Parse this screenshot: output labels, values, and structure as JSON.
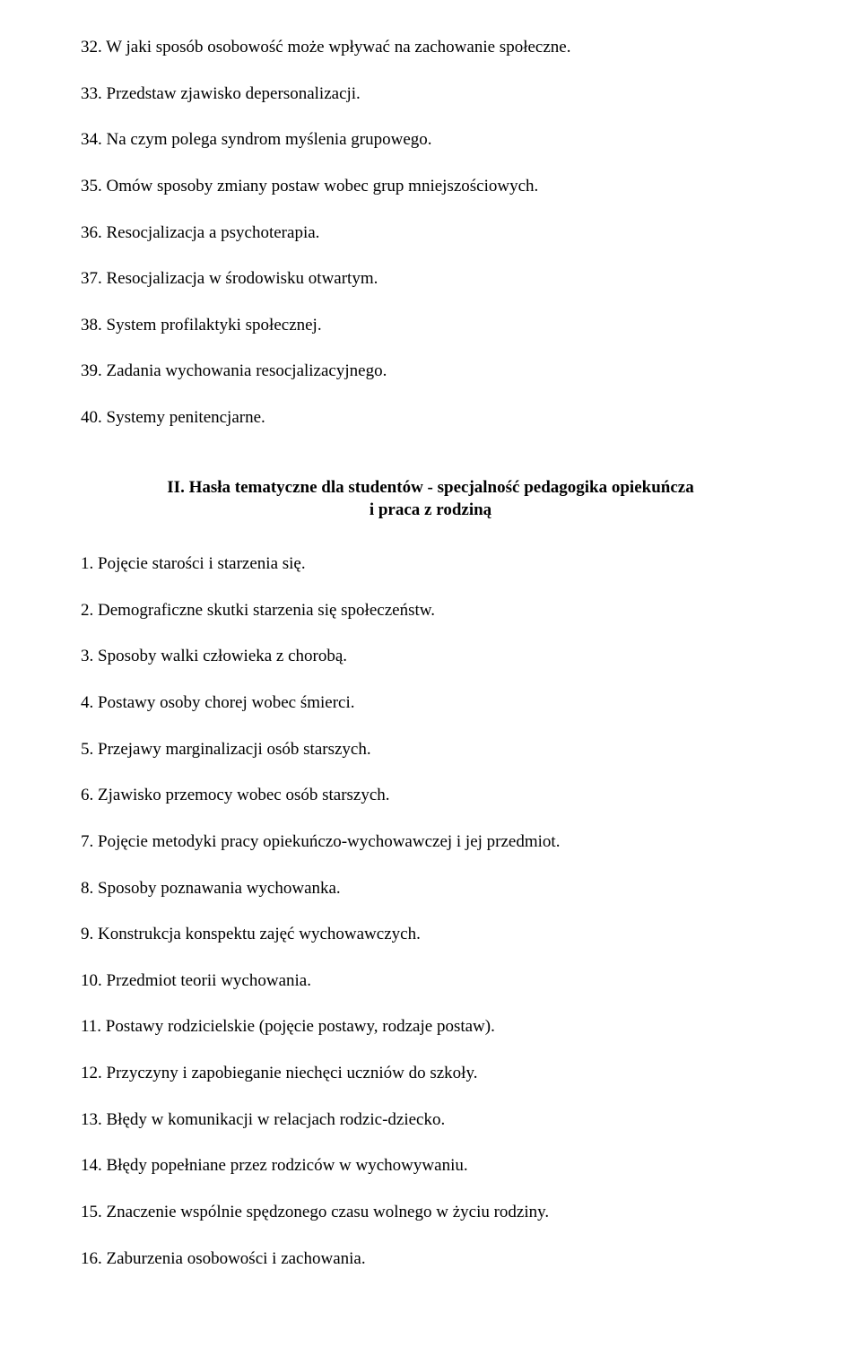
{
  "section1": {
    "items": [
      "32. W jaki sposób osobowość może wpływać na zachowanie społeczne.",
      "33. Przedstaw zjawisko depersonalizacji.",
      "34. Na czym polega syndrom myślenia grupowego.",
      "35. Omów sposoby zmiany postaw wobec grup mniejszościowych.",
      "36. Resocjalizacja a psychoterapia.",
      "37. Resocjalizacja w środowisku otwartym.",
      "38. System profilaktyki społecznej.",
      "39. Zadania wychowania resocjalizacyjnego.",
      "40. Systemy penitencjarne."
    ]
  },
  "section2": {
    "heading_line1": "II. Hasła tematyczne dla studentów - specjalność pedagogika opiekuńcza",
    "heading_line2": "i praca z rodziną",
    "items": [
      "1. Pojęcie starości i starzenia się.",
      "2. Demograficzne skutki starzenia się społeczeństw.",
      "3. Sposoby walki człowieka z chorobą.",
      "4. Postawy osoby chorej wobec śmierci.",
      "5. Przejawy marginalizacji osób starszych.",
      "6. Zjawisko przemocy wobec osób starszych.",
      "7. Pojęcie metodyki pracy opiekuńczo-wychowawczej i jej przedmiot.",
      "8. Sposoby poznawania wychowanka.",
      "9. Konstrukcja konspektu zajęć wychowawczych.",
      "10. Przedmiot teorii wychowania.",
      "11. Postawy rodzicielskie (pojęcie postawy, rodzaje postaw).",
      "12. Przyczyny i zapobieganie niechęci uczniów do szkoły.",
      "13. Błędy w komunikacji w relacjach rodzic-dziecko.",
      "14. Błędy popełniane przez rodziców w wychowywaniu.",
      "15. Znaczenie wspólnie spędzonego czasu wolnego w życiu rodziny.",
      "16. Zaburzenia osobowości i zachowania."
    ]
  }
}
